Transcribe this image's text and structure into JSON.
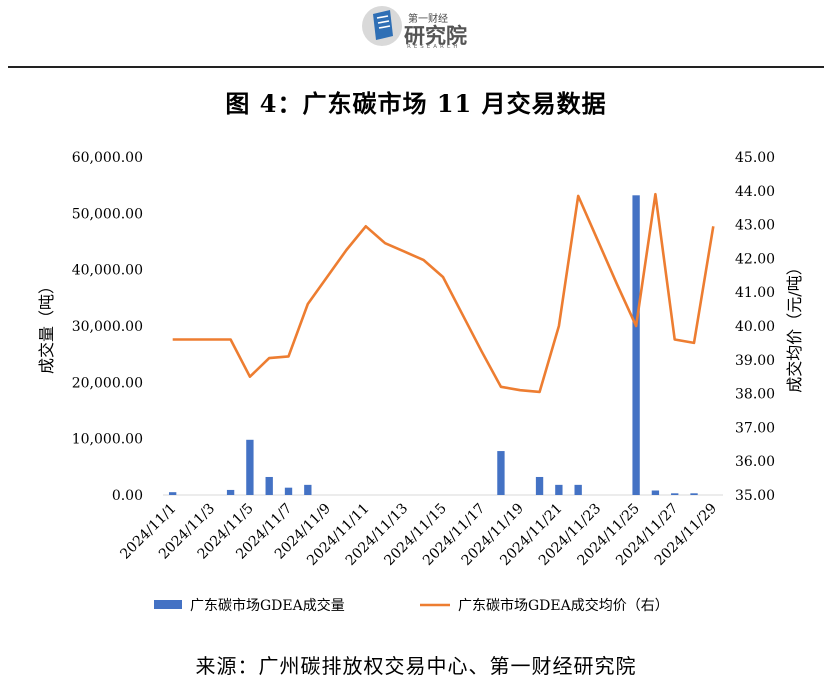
{
  "header": {
    "logo_name": "第一财经",
    "logo_text": "研究院",
    "logo_sub": "RESEARCH",
    "logo_icon": "document-icon"
  },
  "figure_title": "图 4：广东碳市场 11 月交易数据",
  "source": "来源：广州碳排放权交易中心、第一财经研究院",
  "colors": {
    "bar": "#4472c4",
    "line": "#ed7d31",
    "logo": "#2f6fb5"
  },
  "chart_data": {
    "type": "bar+line",
    "title": "图 4：广东碳市场 11 月交易数据",
    "ylabel": "成交量（吨）",
    "y2label": "成交均价（元/吨）",
    "ylim": [
      0,
      60000
    ],
    "y2lim": [
      35,
      45
    ],
    "y_ticks": [
      "0.00",
      "10,000.00",
      "20,000.00",
      "30,000.00",
      "40,000.00",
      "50,000.00",
      "60,000.00"
    ],
    "y2_ticks": [
      "35.00",
      "36.00",
      "37.00",
      "38.00",
      "39.00",
      "40.00",
      "41.00",
      "42.00",
      "43.00",
      "44.00",
      "45.00"
    ],
    "categories": [
      "2024/11/1",
      "2024/11/2",
      "2024/11/3",
      "2024/11/4",
      "2024/11/5",
      "2024/11/6",
      "2024/11/7",
      "2024/11/8",
      "2024/11/9",
      "2024/11/10",
      "2024/11/11",
      "2024/11/12",
      "2024/11/13",
      "2024/11/14",
      "2024/11/15",
      "2024/11/16",
      "2024/11/17",
      "2024/11/18",
      "2024/11/19",
      "2024/11/20",
      "2024/11/21",
      "2024/11/22",
      "2024/11/23",
      "2024/11/24",
      "2024/11/25",
      "2024/11/26",
      "2024/11/27",
      "2024/11/28",
      "2024/11/29"
    ],
    "x_tick_labels": [
      "2024/11/1",
      "2024/11/3",
      "2024/11/5",
      "2024/11/7",
      "2024/11/9",
      "2024/11/11",
      "2024/11/13",
      "2024/11/15",
      "2024/11/17",
      "2024/11/19",
      "2024/11/21",
      "2024/11/23",
      "2024/11/25",
      "2024/11/27",
      "2024/11/29"
    ],
    "series": [
      {
        "name": "广东碳市场GDEA成交量",
        "type": "bar",
        "axis": "left",
        "values": [
          500,
          0,
          0,
          900,
          9800,
          3200,
          1300,
          1800,
          0,
          0,
          0,
          0,
          0,
          0,
          0,
          0,
          0,
          7800,
          0,
          3200,
          1800,
          1800,
          0,
          0,
          53200,
          800,
          300,
          300,
          0
        ]
      },
      {
        "name": "广东碳市场GDEA成交均价（右）",
        "type": "line",
        "axis": "right",
        "values": [
          39.6,
          39.6,
          39.6,
          39.6,
          38.5,
          39.05,
          39.1,
          40.65,
          41.45,
          42.25,
          42.95,
          42.45,
          42.2,
          41.95,
          41.45,
          40.35,
          39.25,
          38.2,
          38.1,
          38.05,
          40.0,
          43.85,
          42.55,
          41.25,
          40.0,
          43.9,
          39.6,
          39.5,
          42.95
        ]
      }
    ],
    "legend_position": "bottom",
    "grid": false
  }
}
